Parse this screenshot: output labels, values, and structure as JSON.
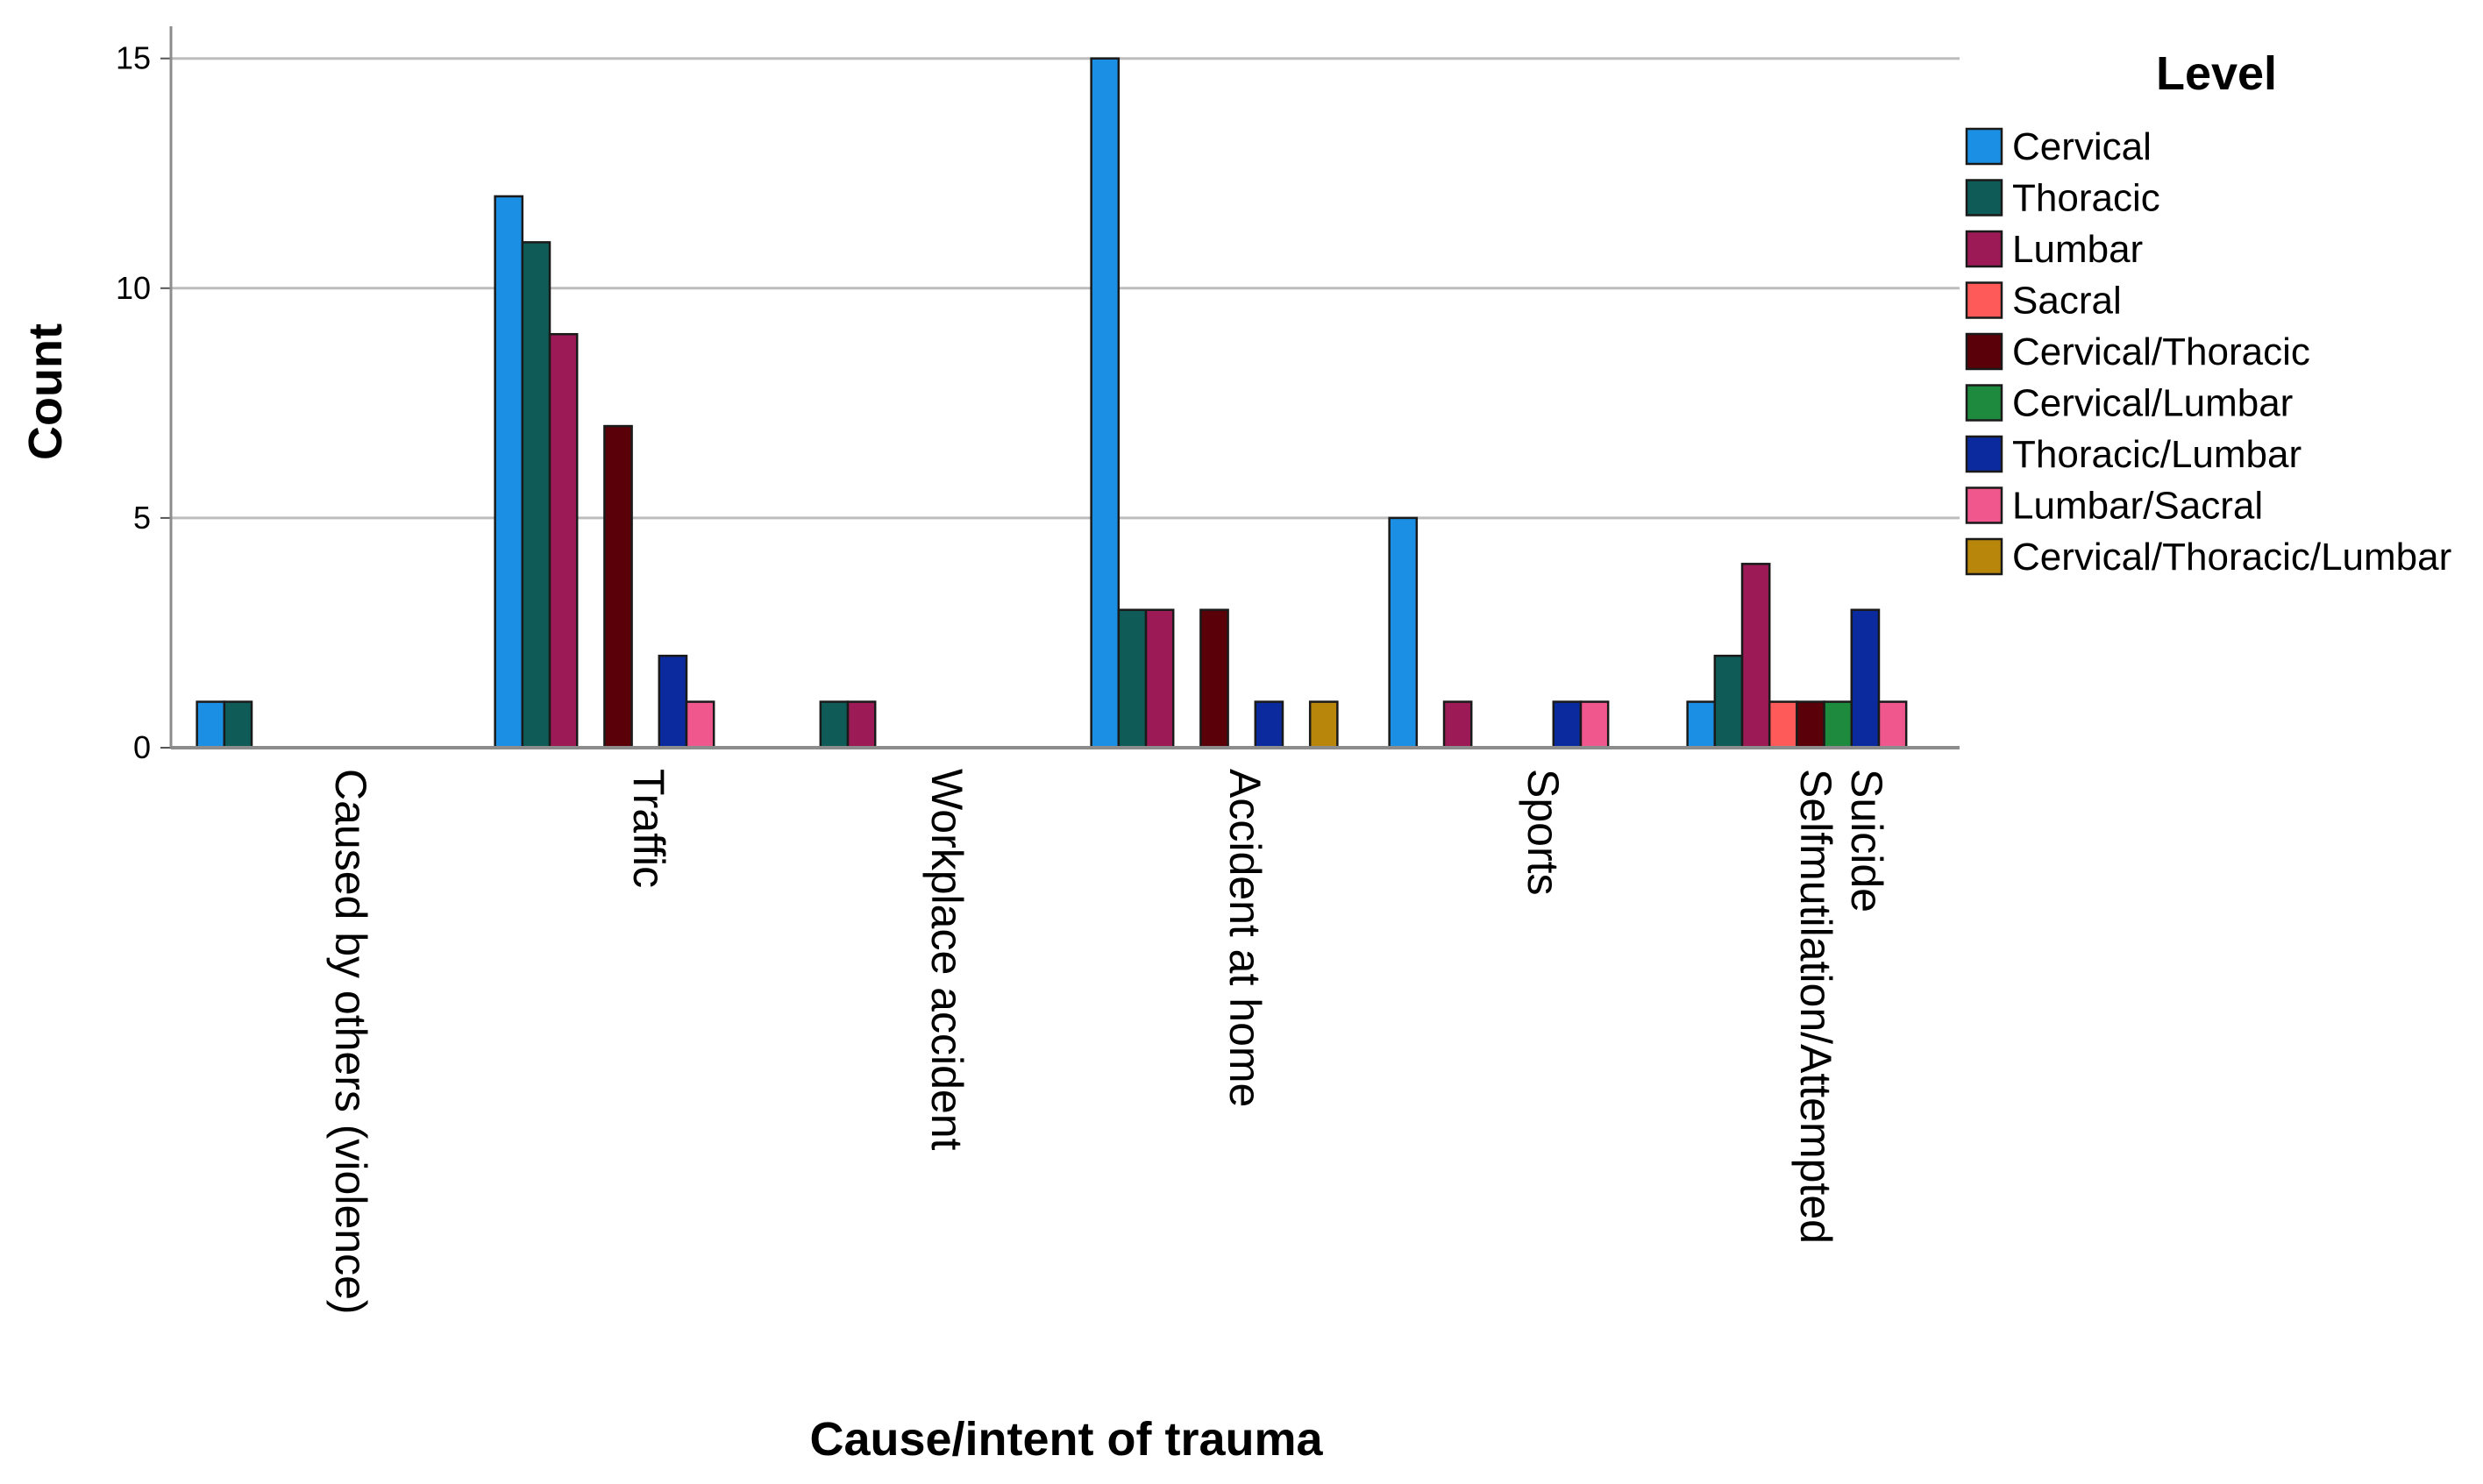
{
  "chart_data": {
    "type": "bar",
    "title": "",
    "xlabel": "Cause/intent of trauma",
    "ylabel": "Count",
    "ylim": [
      0,
      15.7
    ],
    "yticks": [
      0,
      5,
      10,
      15
    ],
    "grid": true,
    "legend_title": "Level",
    "legend_position": "right",
    "categories": [
      [
        "Caused by others (violence)"
      ],
      [
        "Traffic"
      ],
      [
        "Workplace accident"
      ],
      [
        "Accident at home"
      ],
      [
        "Sports"
      ],
      [
        "Selfmutilation/Attempted",
        "Suicide"
      ]
    ],
    "series": [
      {
        "name": "Cervical",
        "color": "#1a8fe3",
        "values": [
          1,
          12,
          0,
          15,
          5,
          1
        ]
      },
      {
        "name": "Thoracic",
        "color": "#0e5b57",
        "values": [
          1,
          11,
          1,
          3,
          0,
          2
        ]
      },
      {
        "name": "Lumbar",
        "color": "#9c1a55",
        "values": [
          0,
          9,
          1,
          3,
          1,
          4
        ]
      },
      {
        "name": "Sacral",
        "color": "#ff5a5a",
        "values": [
          0,
          0,
          0,
          0,
          0,
          1
        ]
      },
      {
        "name": "Cervical/Thoracic",
        "color": "#5a0008",
        "values": [
          0,
          7,
          0,
          3,
          0,
          1
        ]
      },
      {
        "name": "Cervical/Lumbar",
        "color": "#1e8a3e",
        "values": [
          0,
          0,
          0,
          0,
          0,
          1
        ]
      },
      {
        "name": "Thoracic/Lumbar",
        "color": "#0a2a9e",
        "values": [
          0,
          2,
          0,
          1,
          1,
          3
        ]
      },
      {
        "name": "Lumbar/Sacral",
        "color": "#f0578c",
        "values": [
          0,
          1,
          0,
          0,
          1,
          1
        ]
      },
      {
        "name": "Cervical/Thoracic/Lumbar",
        "color": "#b8860b",
        "values": [
          0,
          0,
          0,
          1,
          0,
          0
        ]
      }
    ]
  }
}
